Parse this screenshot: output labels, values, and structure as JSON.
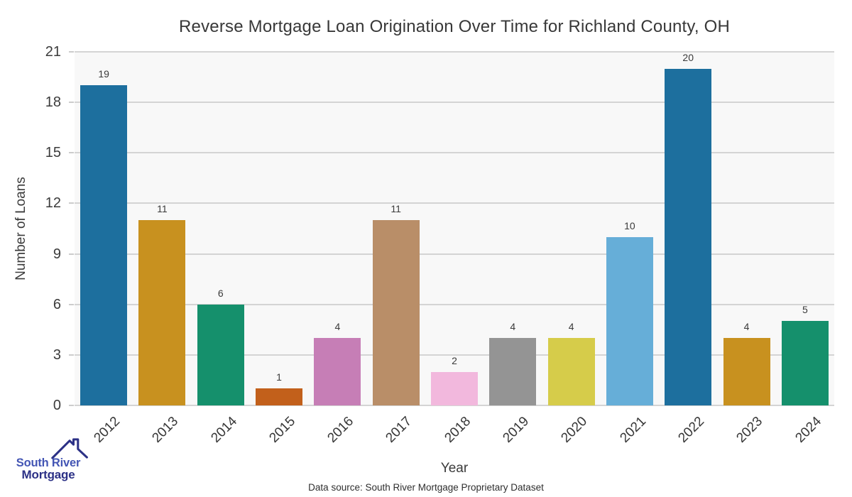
{
  "chart_data": {
    "type": "bar",
    "title": "Reverse Mortgage Loan Origination Over Time for Richland County, OH",
    "categories": [
      "2012",
      "2013",
      "2014",
      "2015",
      "2016",
      "2017",
      "2018",
      "2019",
      "2020",
      "2021",
      "2022",
      "2023",
      "2024"
    ],
    "values": [
      19,
      11,
      6,
      1,
      4,
      11,
      2,
      4,
      4,
      10,
      20,
      4,
      5
    ],
    "bar_colors": [
      "#1d6f9e",
      "#c8911f",
      "#15906c",
      "#c2601b",
      "#c67eb6",
      "#b98e68",
      "#f2b8dd",
      "#949494",
      "#d6cc4a",
      "#66aed8",
      "#1d6f9e",
      "#c8911f",
      "#15906c"
    ],
    "xlabel": "Year",
    "ylabel": "Number of Loans",
    "ylim": [
      0,
      21
    ],
    "yticks": [
      0,
      3,
      6,
      9,
      12,
      15,
      18,
      21
    ],
    "grid": true,
    "legend_position": "none",
    "value_labels": true
  },
  "branding": {
    "logo_line1": "South River",
    "logo_line2": "Mortgage"
  },
  "footer": {
    "data_source": "Data source: South River Mortgage Proprietary Dataset"
  },
  "colors": {
    "plot_bg": "#f8f8f8",
    "grid": "#d4d4d4",
    "title_text": "#383838",
    "tick_text": "#3b3b3b",
    "bar_label_text": "#3a3a3a",
    "logo_blue": "#4355b4",
    "logo_navy": "#2c3186"
  }
}
